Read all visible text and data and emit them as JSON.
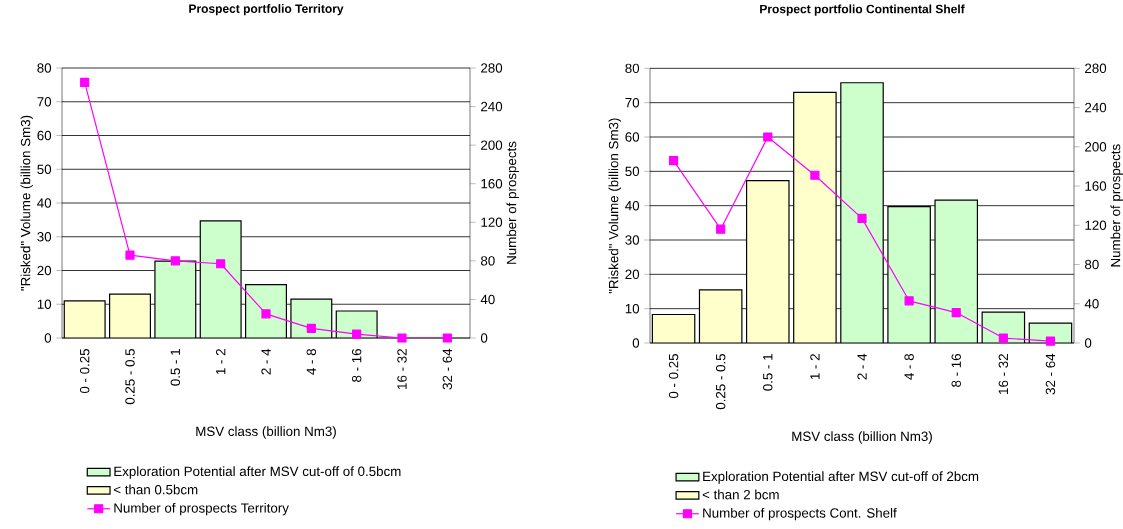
{
  "chart_data": [
    {
      "type": "bar",
      "title": "Prospect portfolio Territory",
      "xlabel": "MSV class (billion Nm3)",
      "ylabel": "\"Risked\" Volume (billion Sm3)",
      "y2label": "Number of prospects",
      "categories": [
        "0 - 0.25",
        "0.25 - 0.5",
        "0.5 - 1",
        "1 - 2",
        "2 - 4",
        "4 - 8",
        "8 - 16",
        "16 - 32",
        "32 - 64"
      ],
      "series": [
        {
          "name": "Exploration Potential after MSV cut-off of 0.5bcm",
          "color": "#ccffcc",
          "values": [
            null,
            null,
            22.8,
            34.7,
            15.8,
            11.5,
            8,
            null,
            null
          ]
        },
        {
          "name": "< than 0.5bcm",
          "color": "#ffffcc",
          "values": [
            11,
            13,
            null,
            null,
            null,
            null,
            null,
            null,
            null
          ]
        },
        {
          "name": "Number of prospects Territory",
          "type": "line",
          "axis": "y2",
          "color": "#ff00ff",
          "marker": "square",
          "values": [
            265,
            86,
            80,
            77,
            25,
            10,
            4,
            0,
            0
          ]
        }
      ],
      "ylim": [
        0,
        80
      ],
      "yticks": [
        0,
        10,
        20,
        30,
        40,
        50,
        60,
        70,
        80
      ],
      "y2lim": [
        0,
        280
      ],
      "y2ticks": [
        0,
        40,
        80,
        120,
        160,
        200,
        240,
        280
      ],
      "grid": "y",
      "legend": "bottom"
    },
    {
      "type": "bar",
      "title": "Prospect portfolio Continental Shelf",
      "xlabel": "MSV class (billion Nm3)",
      "ylabel": "\"Risked\" Volume (billion Sm3)",
      "y2label": "Number of prospects",
      "categories": [
        "0 - 0.25",
        "0.25 - 0.5",
        "0.5 - 1",
        "1 - 2",
        "2 - 4",
        "4 - 8",
        "8 - 16",
        "16 - 32",
        "32 - 64"
      ],
      "series": [
        {
          "name": "Exploration Potential after MSV cut-off of 2bcm",
          "color": "#ccffcc",
          "values": [
            null,
            null,
            null,
            null,
            75.8,
            39.7,
            41.6,
            9,
            5.8
          ]
        },
        {
          "name": "< than 2 bcm",
          "color": "#ffffcc",
          "values": [
            8.3,
            15.5,
            47.3,
            73,
            null,
            null,
            null,
            null,
            null
          ]
        },
        {
          "name": "Number of prospects Cont. Shelf",
          "type": "line",
          "axis": "y2",
          "color": "#ff00ff",
          "marker": "square",
          "values": [
            186,
            116,
            210,
            171,
            127,
            43,
            31,
            5,
            2
          ]
        }
      ],
      "ylim": [
        0,
        80
      ],
      "yticks": [
        0,
        10,
        20,
        30,
        40,
        50,
        60,
        70,
        80
      ],
      "y2lim": [
        0,
        280
      ],
      "y2ticks": [
        0,
        40,
        80,
        120,
        160,
        200,
        240,
        280
      ],
      "grid": "y",
      "legend": "bottom"
    }
  ]
}
